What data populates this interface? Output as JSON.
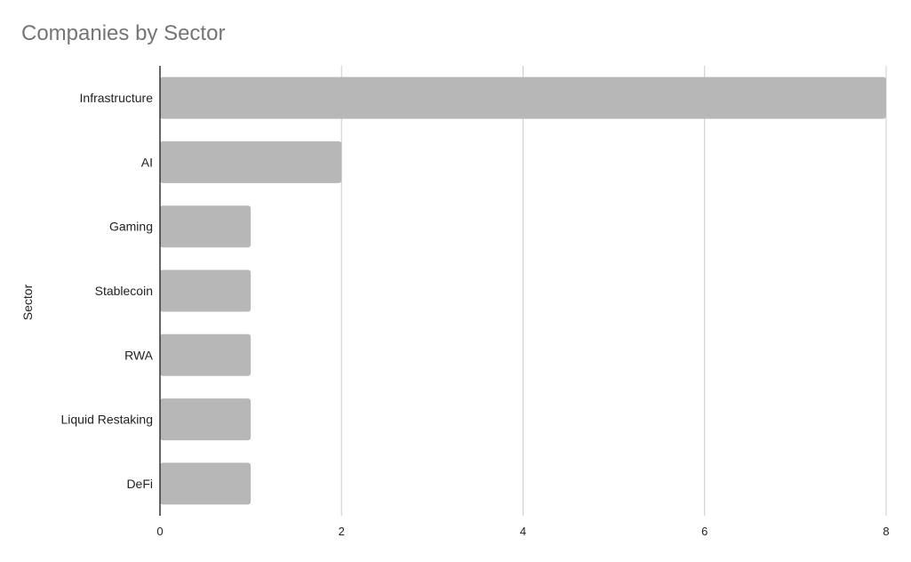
{
  "chart_data": {
    "type": "bar",
    "orientation": "horizontal",
    "title": "Companies by Sector",
    "xlabel": "",
    "ylabel": "Sector",
    "categories": [
      "Infrastructure",
      "AI",
      "Gaming",
      "Stablecoin",
      "RWA",
      "Liquid Restaking",
      "DeFi"
    ],
    "values": [
      8,
      2,
      1,
      1,
      1,
      1,
      1
    ],
    "xlim": [
      0,
      8
    ],
    "xticks": [
      "0",
      "2",
      "4",
      "6",
      "8"
    ],
    "grid": true,
    "legend": "none",
    "colors": {
      "bar": "#b7b7b7",
      "grid": "#cccccc",
      "axis": "#333333",
      "title": "#757575",
      "label": "#222222"
    }
  }
}
